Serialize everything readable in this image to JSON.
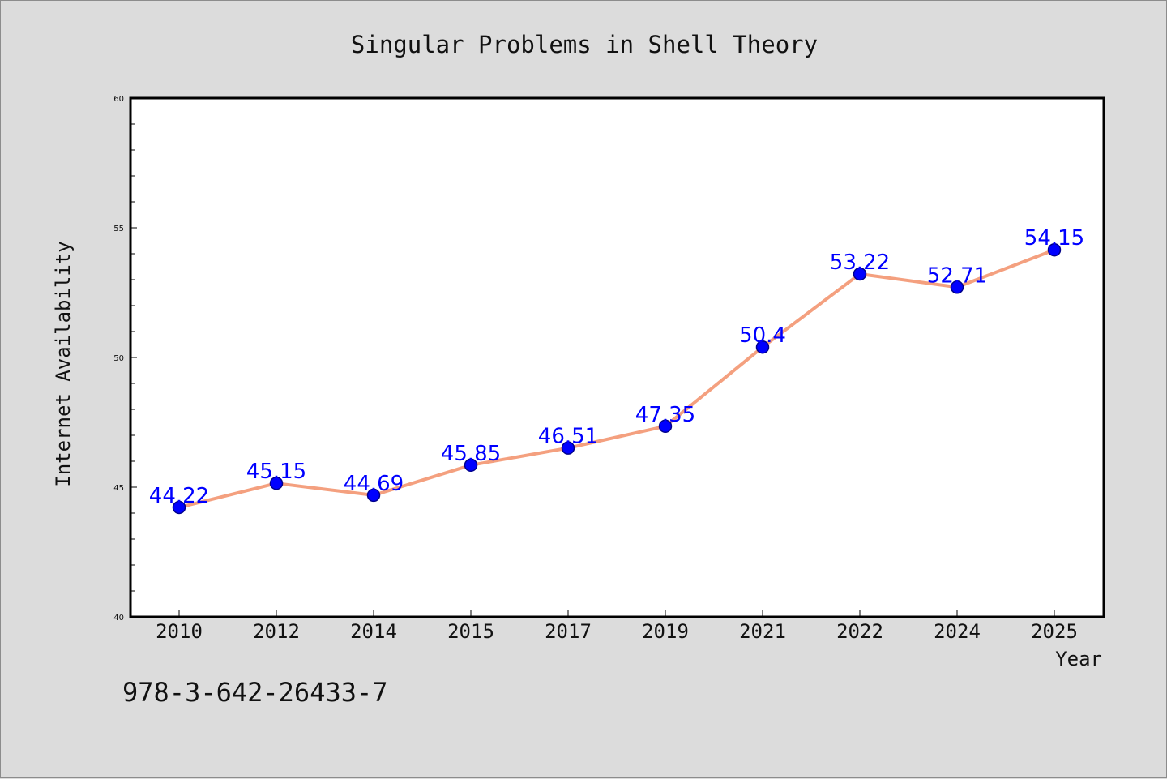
{
  "chart_data": {
    "type": "line",
    "title": "Singular Problems in Shell Theory",
    "xlabel": "Year",
    "ylabel": "Internet Availability",
    "categories": [
      "2010",
      "2012",
      "2014",
      "2015",
      "2017",
      "2019",
      "2021",
      "2022",
      "2024",
      "2025"
    ],
    "values": [
      44.22,
      45.15,
      44.69,
      45.85,
      46.51,
      47.35,
      50.4,
      53.22,
      52.71,
      54.15
    ],
    "data_labels": [
      "44.22",
      "45.15",
      "44.69",
      "45.85",
      "46.51",
      "47.35",
      "50.4",
      "53.22",
      "52.71",
      "54.15"
    ],
    "ylim": [
      40,
      60
    ],
    "yticks": [
      40,
      45,
      50,
      55,
      60
    ],
    "grid": false,
    "legend": "none",
    "colors": {
      "line": "#f4a07f",
      "marker": "#0000ff",
      "marker_edge": "#00008b",
      "data_label": "#0000ff",
      "background": "#dcdcdc",
      "plot_background": "#ffffff"
    }
  },
  "footer": {
    "isbn": "978-3-642-26433-7"
  }
}
